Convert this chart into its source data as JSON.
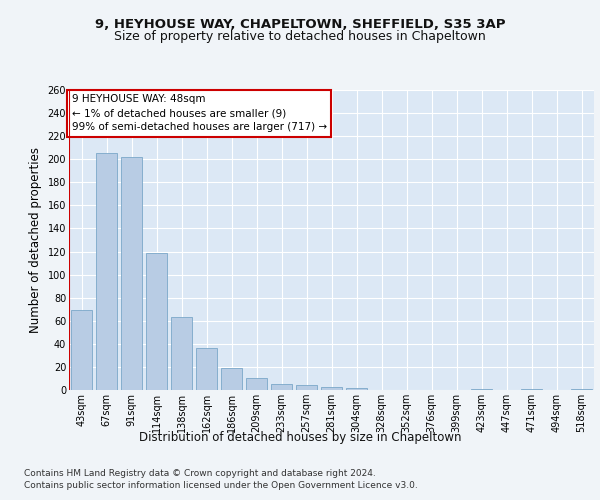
{
  "title_line1": "9, HEYHOUSE WAY, CHAPELTOWN, SHEFFIELD, S35 3AP",
  "title_line2": "Size of property relative to detached houses in Chapeltown",
  "xlabel": "Distribution of detached houses by size in Chapeltown",
  "ylabel": "Number of detached properties",
  "categories": [
    "43sqm",
    "67sqm",
    "91sqm",
    "114sqm",
    "138sqm",
    "162sqm",
    "186sqm",
    "209sqm",
    "233sqm",
    "257sqm",
    "281sqm",
    "304sqm",
    "328sqm",
    "352sqm",
    "376sqm",
    "399sqm",
    "423sqm",
    "447sqm",
    "471sqm",
    "494sqm",
    "518sqm"
  ],
  "values": [
    69,
    205,
    202,
    119,
    63,
    36,
    19,
    10,
    5,
    4,
    3,
    2,
    0,
    0,
    0,
    0,
    1,
    0,
    1,
    0,
    1
  ],
  "bar_color": "#b8cce4",
  "bar_edge_color": "#7ba7c9",
  "highlight_color": "#cc0000",
  "annotation_text": "9 HEYHOUSE WAY: 48sqm\n← 1% of detached houses are smaller (9)\n99% of semi-detached houses are larger (717) →",
  "annotation_box_color": "#ffffff",
  "annotation_box_edge_color": "#cc0000",
  "ylim": [
    0,
    260
  ],
  "yticks": [
    0,
    20,
    40,
    60,
    80,
    100,
    120,
    140,
    160,
    180,
    200,
    220,
    240,
    260
  ],
  "footer_line1": "Contains HM Land Registry data © Crown copyright and database right 2024.",
  "footer_line2": "Contains public sector information licensed under the Open Government Licence v3.0.",
  "fig_bg_color": "#f0f4f8",
  "plot_bg_color": "#dce8f5",
  "title_fontsize": 9.5,
  "subtitle_fontsize": 9,
  "axis_label_fontsize": 8.5,
  "tick_fontsize": 7,
  "annotation_fontsize": 7.5,
  "footer_fontsize": 6.5
}
